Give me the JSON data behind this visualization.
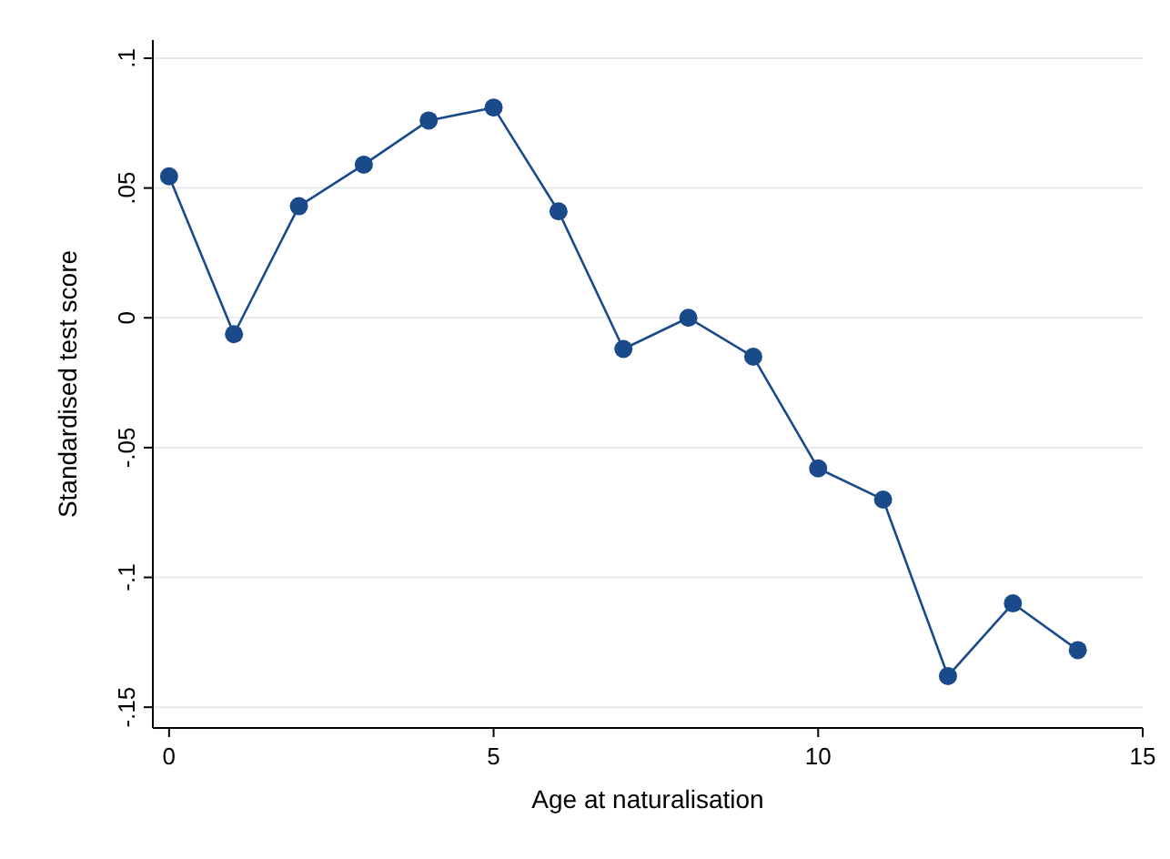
{
  "chart_data": {
    "type": "line",
    "xlabel": "Age at naturalisation",
    "ylabel": "Standardised test score",
    "x": [
      0,
      1,
      2,
      3,
      4,
      5,
      6,
      7,
      8,
      9,
      10,
      11,
      12,
      13,
      14
    ],
    "series": [
      {
        "color": "#1a4a8a",
        "values": [
          0.0545,
          -0.0063,
          0.043,
          0.059,
          0.076,
          0.081,
          0.041,
          -0.012,
          0.0,
          -0.015,
          -0.058,
          -0.07,
          -0.138,
          -0.11,
          -0.128
        ]
      }
    ],
    "xlim": [
      -0.25,
      15
    ],
    "xticks": [
      0,
      5,
      10,
      15
    ],
    "ylim": [
      -0.158,
      0.107
    ],
    "yticks": [
      {
        "value": -0.15,
        "label": "-.15"
      },
      {
        "value": -0.1,
        "label": "-.1"
      },
      {
        "value": -0.05,
        "label": "-.05"
      },
      {
        "value": 0,
        "label": "0"
      },
      {
        "value": 0.05,
        "label": ".05"
      },
      {
        "value": 0.1,
        "label": ".1"
      }
    ],
    "grid": "y",
    "marker": "circle",
    "line_style": "solid"
  }
}
